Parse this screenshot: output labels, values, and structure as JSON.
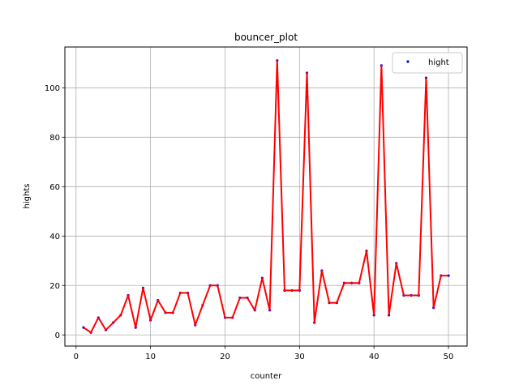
{
  "chart_data": {
    "type": "line",
    "title": "bouncer_plot",
    "xlabel": "counter",
    "ylabel": "hights",
    "xlim": [
      -1.5,
      52.5
    ],
    "ylim": [
      -4.5,
      116.5
    ],
    "xticks": [
      0,
      10,
      20,
      30,
      40,
      50
    ],
    "yticks": [
      0,
      20,
      40,
      60,
      80,
      100
    ],
    "grid": true,
    "legend": {
      "position": "top-right",
      "entries": [
        "hight"
      ]
    },
    "line_color": "#ff0000",
    "marker_color": "#0000ff",
    "series": [
      {
        "name": "hight",
        "x": [
          1,
          2,
          3,
          4,
          5,
          6,
          7,
          8,
          9,
          10,
          11,
          12,
          13,
          14,
          15,
          16,
          17,
          18,
          19,
          20,
          21,
          22,
          23,
          24,
          25,
          26,
          27,
          28,
          29,
          30,
          31,
          32,
          33,
          34,
          35,
          36,
          37,
          38,
          39,
          40,
          41,
          42,
          43,
          44,
          45,
          46,
          47,
          48,
          49,
          50
        ],
        "y": [
          3,
          1,
          7,
          2,
          5,
          8,
          16,
          3,
          19,
          6,
          14,
          9,
          9,
          17,
          17,
          4,
          12,
          20,
          20,
          7,
          7,
          15,
          15,
          10,
          23,
          10,
          111,
          18,
          18,
          18,
          106,
          5,
          26,
          13,
          13,
          21,
          21,
          21,
          34,
          8,
          109,
          8,
          29,
          16,
          16,
          16,
          104,
          11,
          24,
          24
        ]
      }
    ]
  }
}
